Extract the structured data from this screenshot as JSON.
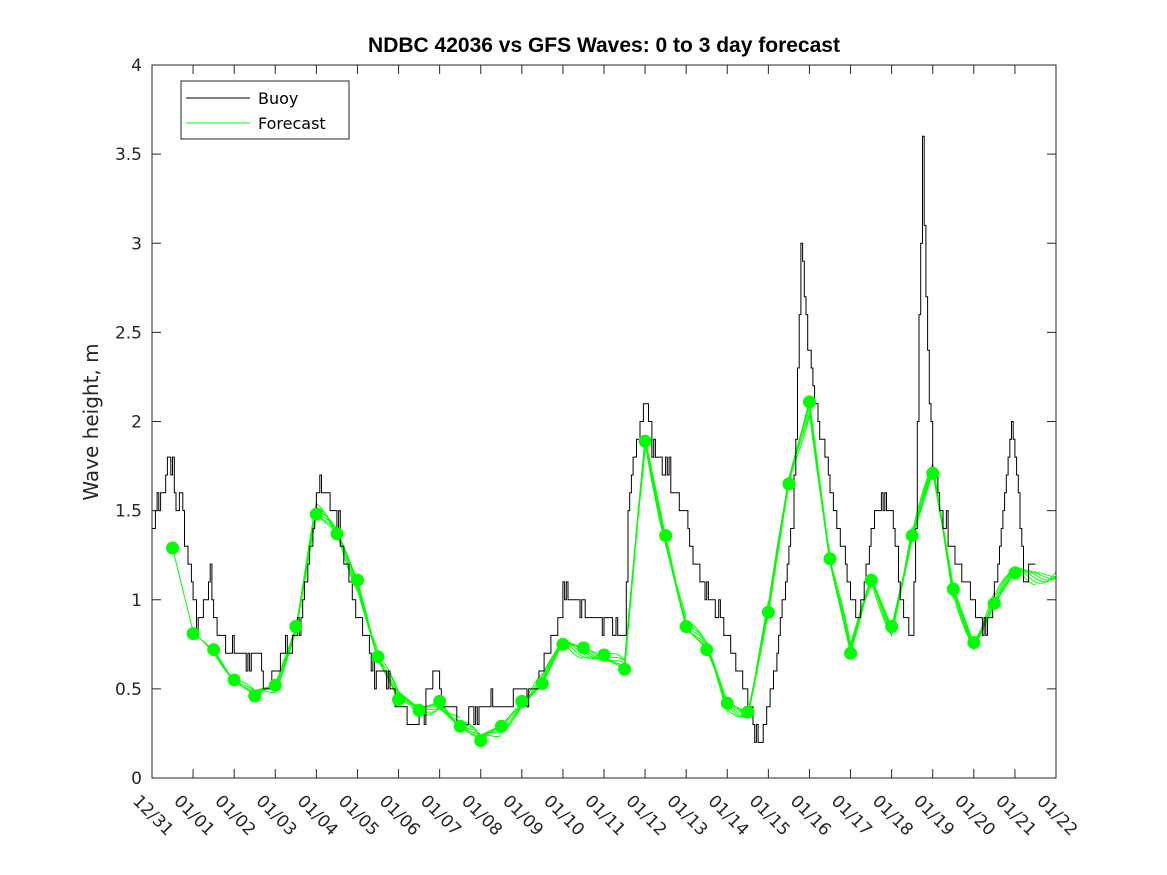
{
  "chart_data": {
    "type": "line",
    "title": "NDBC 42036 vs GFS Waves: 0 to 3 day forecast",
    "xlabel": "",
    "ylabel": "Wave height, m",
    "xlim": [
      0,
      22
    ],
    "ylim": [
      0,
      4
    ],
    "x_ticks": [
      "12/31",
      "01/01",
      "01/02",
      "01/03",
      "01/04",
      "01/05",
      "01/06",
      "01/07",
      "01/08",
      "01/09",
      "01/10",
      "01/11",
      "01/12",
      "01/13",
      "01/14",
      "01/15",
      "01/16",
      "01/17",
      "01/18",
      "01/19",
      "01/20",
      "01/21",
      "01/22"
    ],
    "y_ticks": [
      "0",
      "0.5",
      "1",
      "1.5",
      "2",
      "2.5",
      "3",
      "3.5",
      "4"
    ],
    "legend": {
      "position": "top-left",
      "entries": [
        "Buoy",
        "Forecast"
      ]
    },
    "colors": {
      "buoy": "#000000",
      "forecast": "#00ff00",
      "axis": "#262626"
    },
    "series": [
      {
        "name": "Buoy",
        "x": [
          0,
          0.1,
          0.2,
          0.3,
          0.4,
          0.45,
          0.5,
          0.55,
          0.6,
          0.7,
          0.8,
          0.9,
          1.0,
          1.1,
          1.2,
          1.3,
          1.4,
          1.5,
          1.6,
          1.7,
          1.8,
          2.0,
          2.2,
          2.4,
          2.6,
          2.7,
          2.8,
          3.0,
          3.2,
          3.4,
          3.6,
          3.8,
          3.9,
          4.0,
          4.1,
          4.2,
          4.3,
          4.5,
          4.7,
          4.9,
          5.0,
          5.2,
          5.4,
          5.6,
          5.8,
          6.0,
          6.2,
          6.4,
          6.6,
          6.8,
          6.9,
          7.0,
          7.2,
          7.4,
          7.6,
          7.8,
          8.0,
          8.2,
          8.4,
          8.6,
          8.8,
          9.0,
          9.2,
          9.4,
          9.6,
          9.8,
          10.0,
          10.2,
          10.4,
          10.6,
          10.8,
          11.0,
          11.2,
          11.4,
          11.5,
          11.6,
          11.8,
          11.9,
          12.0,
          12.1,
          12.2,
          12.3,
          12.5,
          12.7,
          12.9,
          13.0,
          13.2,
          13.4,
          13.6,
          13.8,
          14.0,
          14.2,
          14.4,
          14.6,
          14.8,
          15.0,
          15.2,
          15.4,
          15.6,
          15.7,
          15.75,
          15.8,
          15.9,
          16.0,
          16.2,
          16.4,
          16.6,
          16.8,
          17.0,
          17.2,
          17.4,
          17.6,
          17.8,
          18.0,
          18.2,
          18.4,
          18.5,
          18.6,
          18.65,
          18.7,
          18.75,
          18.8,
          18.9,
          19.0,
          19.2,
          19.4,
          19.6,
          19.8,
          20.0,
          20.2,
          20.4,
          20.6,
          20.7,
          20.8,
          20.9,
          21.0,
          21.1,
          21.2,
          21.4,
          21.5
        ],
        "values": [
          1.4,
          1.5,
          1.5,
          1.6,
          1.9,
          1.7,
          1.8,
          1.6,
          1.5,
          1.6,
          1.3,
          1.2,
          1.0,
          0.9,
          0.9,
          1.0,
          1.1,
          0.9,
          0.8,
          0.8,
          0.7,
          0.7,
          0.7,
          0.65,
          0.7,
          0.5,
          0.5,
          0.6,
          0.7,
          0.75,
          0.9,
          1.2,
          1.35,
          1.6,
          1.7,
          1.6,
          1.55,
          1.4,
          1.2,
          1.0,
          0.9,
          0.8,
          0.65,
          0.6,
          0.5,
          0.4,
          0.35,
          0.3,
          0.4,
          0.55,
          0.6,
          0.45,
          0.4,
          0.35,
          0.3,
          0.4,
          0.4,
          0.35,
          0.35,
          0.4,
          0.45,
          0.5,
          0.5,
          0.55,
          0.7,
          0.8,
          0.95,
          1.05,
          1.0,
          0.9,
          0.95,
          0.9,
          0.85,
          0.75,
          0.8,
          1.6,
          1.9,
          2.0,
          2.1,
          2.0,
          1.9,
          1.8,
          1.7,
          1.6,
          1.5,
          1.45,
          1.2,
          1.1,
          1.0,
          0.9,
          0.8,
          0.65,
          0.5,
          0.35,
          0.2,
          0.4,
          0.7,
          1.1,
          1.4,
          2.2,
          2.6,
          3.1,
          2.6,
          2.4,
          2.0,
          1.8,
          1.5,
          1.25,
          1.0,
          0.9,
          1.2,
          1.5,
          1.6,
          1.45,
          1.0,
          0.85,
          0.8,
          1.5,
          2.5,
          2.9,
          3.6,
          3.0,
          2.2,
          1.8,
          1.5,
          1.3,
          1.2,
          1.1,
          0.95,
          0.85,
          0.9,
          1.25,
          1.5,
          1.7,
          2.0,
          1.8,
          1.5,
          1.1,
          1.2,
          1.25
        ]
      },
      {
        "name": "Forecast",
        "x": [
          0.5,
          1.0,
          1.5,
          2.0,
          2.5,
          3.0,
          3.5,
          4.0,
          4.5,
          5.0,
          5.5,
          6.0,
          6.5,
          7.0,
          7.5,
          8.0,
          8.5,
          9.0,
          9.5,
          10.0,
          10.5,
          11.0,
          11.5,
          12.0,
          12.5,
          13.0,
          13.5,
          14.0,
          14.5,
          15.0,
          15.5,
          16.0,
          16.5,
          17.0,
          17.5,
          18.0,
          18.5,
          19.0,
          19.5,
          20.0,
          20.5,
          21.0
        ],
        "values": [
          1.29,
          0.81,
          0.72,
          0.55,
          0.46,
          0.52,
          0.85,
          1.48,
          1.37,
          1.11,
          0.68,
          0.44,
          0.38,
          0.43,
          0.29,
          0.21,
          0.29,
          0.43,
          0.53,
          0.75,
          0.73,
          0.69,
          0.61,
          1.89,
          1.36,
          0.85,
          0.72,
          0.42,
          0.37,
          0.93,
          1.65,
          2.11,
          1.23,
          0.7,
          1.11,
          0.85,
          1.36,
          1.71,
          1.06,
          0.76,
          0.98,
          1.15
        ]
      }
    ]
  }
}
